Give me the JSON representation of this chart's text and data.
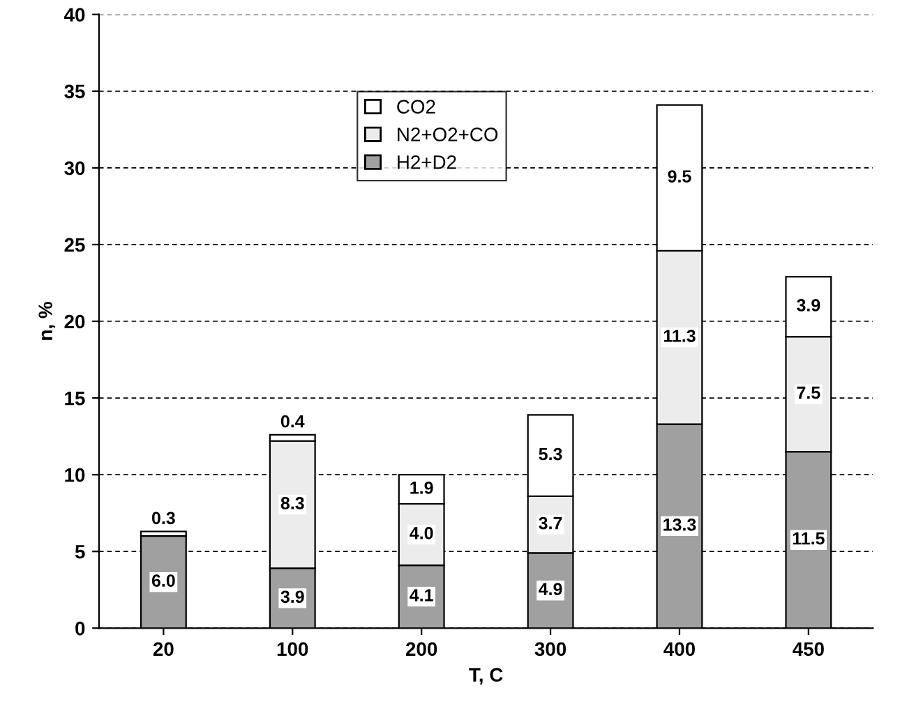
{
  "chart_data": {
    "type": "bar",
    "stacked": true,
    "xlabel": "T, C",
    "ylabel": "n, %",
    "categories": [
      "20",
      "100",
      "200",
      "300",
      "400",
      "450"
    ],
    "series": [
      {
        "name": "H2+D2",
        "color": "#a0a0a0",
        "values": [
          6.0,
          3.9,
          4.1,
          4.9,
          13.3,
          11.5
        ],
        "value_labels": [
          "6.0",
          "3.9",
          "4.1",
          "4.9",
          "13.3",
          "11.5"
        ]
      },
      {
        "name": "N2+O2+CO",
        "color": "#ececec",
        "values": [
          null,
          8.3,
          4.0,
          3.7,
          11.3,
          7.5
        ],
        "value_labels": [
          null,
          "8.3",
          "4.0",
          "3.7",
          "11.3",
          "7.5"
        ]
      },
      {
        "name": "CO2",
        "color": "#ffffff",
        "values": [
          0.3,
          0.4,
          1.9,
          5.3,
          9.5,
          3.9
        ],
        "value_labels": [
          "0.3",
          "0.4",
          "1.9",
          "5.3",
          "9.5",
          "3.9"
        ]
      }
    ],
    "ylim": [
      0,
      40
    ],
    "yticks": [
      0,
      5,
      10,
      15,
      20,
      25,
      30,
      35,
      40
    ],
    "grid": "y",
    "legend": "top"
  }
}
